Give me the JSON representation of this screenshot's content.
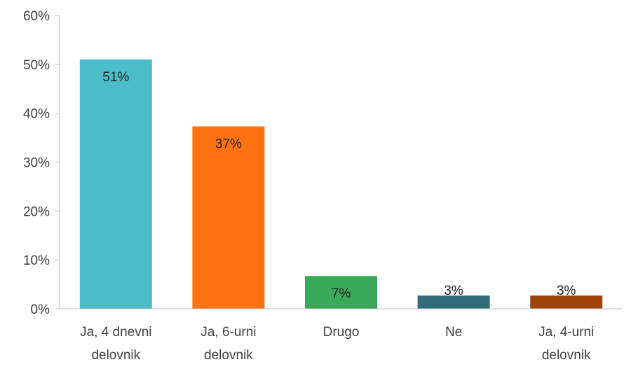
{
  "chart_data": {
    "type": "bar",
    "title": "",
    "xlabel": "",
    "ylabel": "",
    "ylim": [
      0,
      60
    ],
    "y_ticks": [
      "0%",
      "10%",
      "20%",
      "30%",
      "40%",
      "50%",
      "60%"
    ],
    "grid": false,
    "categories": [
      [
        "Ja, 4 dnevni",
        "delovnik"
      ],
      [
        "Ja, 6-urni",
        "delovnik"
      ],
      [
        "Drugo"
      ],
      [
        "Ne"
      ],
      [
        "Ja, 4-urni",
        "delovnik"
      ]
    ],
    "values": [
      51,
      37.3,
      6.7,
      2.7,
      2.7
    ],
    "data_labels": [
      "51%",
      "37%",
      "7%",
      "3%",
      "3%"
    ],
    "colors": [
      "#4bbdc9",
      "#ff7212",
      "#3aa95a",
      "#2f6e78",
      "#a0420c"
    ],
    "label_colors": [
      "#1f1f1f",
      "#1f1f1f",
      "#1f1f1f",
      "#1f1f1f",
      "#1f1f1f"
    ]
  }
}
